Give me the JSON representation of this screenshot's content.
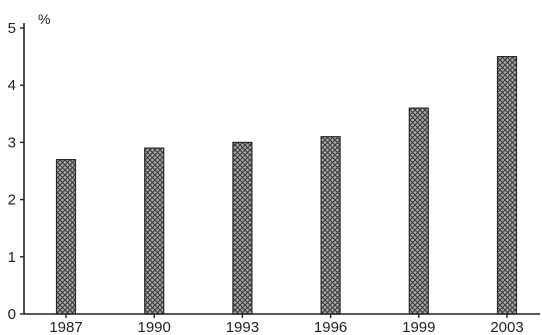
{
  "chart_data": {
    "type": "bar",
    "title": "",
    "xlabel": "",
    "ylabel": "%",
    "categories": [
      "1987",
      "1990",
      "1993",
      "1996",
      "1999",
      "2003"
    ],
    "values": [
      2.7,
      2.9,
      3.0,
      3.1,
      3.6,
      4.5
    ],
    "ylim": [
      0,
      5
    ],
    "yticks": [
      "0",
      "1",
      "2",
      "3",
      "4",
      "5"
    ],
    "grid": false,
    "legend": "none",
    "bar_fill": "crosshatch",
    "colors": {
      "bar": "#9a9a9a",
      "axis": "#222222",
      "background": "#ffffff"
    }
  }
}
